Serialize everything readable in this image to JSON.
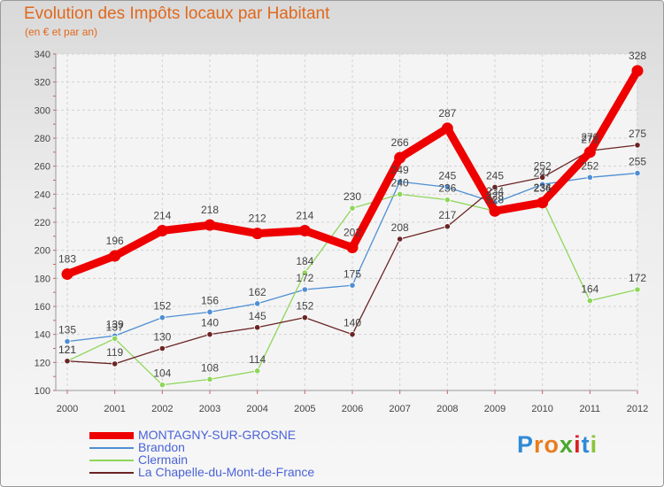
{
  "chart_data": {
    "type": "line",
    "title": "Evolution des Impôts locaux par Habitant",
    "subtitle": "(en € et par an)",
    "xlabel": "",
    "ylabel": "",
    "ylim": [
      100,
      340
    ],
    "yticks": [
      "100",
      "120",
      "140",
      "160",
      "180",
      "200",
      "220",
      "240",
      "260",
      "280",
      "300",
      "320",
      "340"
    ],
    "categories": [
      "2000",
      "2001",
      "2002",
      "2003",
      "2004",
      "2005",
      "2006",
      "2007",
      "2008",
      "2009",
      "2010",
      "2011",
      "2012"
    ],
    "series": [
      {
        "name": "Brandon",
        "color": "#4f8fd3",
        "values": [
          135,
          139,
          152,
          156,
          162,
          172,
          175,
          249,
          245,
          234,
          247,
          252,
          255
        ],
        "labels": [
          "135",
          "139",
          "152",
          "156",
          "162",
          "172",
          "175",
          "249",
          "245",
          "234",
          "247",
          "252",
          "255"
        ]
      },
      {
        "name": "Clermain",
        "color": "#8ed65a",
        "values": [
          121,
          137,
          104,
          108,
          114,
          184,
          230,
          240,
          236,
          228,
          236,
          164,
          172
        ],
        "labels": [
          "121",
          "137",
          "104",
          "108",
          "114",
          "184",
          "230",
          "240",
          "236",
          "228",
          "236",
          "164",
          "172"
        ]
      },
      {
        "name": "La Chapelle-du-Mont-de-France",
        "color": "#6b2424",
        "values": [
          121,
          119,
          130,
          140,
          145,
          152,
          140,
          208,
          217,
          245,
          252,
          271,
          275
        ],
        "labels": [
          "121",
          "119",
          "130",
          "140",
          "145",
          "152",
          "140",
          "208",
          "217",
          "245",
          "252",
          "271",
          "275"
        ]
      },
      {
        "name": "MONTAGNY-SUR-GROSNE",
        "color": "#ee0000",
        "emphasis": true,
        "values": [
          183,
          196,
          214,
          218,
          212,
          214,
          202,
          266,
          287,
          228,
          234,
          270,
          328
        ],
        "labels": [
          "183",
          "196",
          "214",
          "218",
          "212",
          "214",
          "202",
          "266",
          "287",
          "228",
          "234",
          "270",
          "328"
        ]
      }
    ],
    "legend": [
      {
        "name": "MONTAGNY-SUR-GROSNE",
        "color": "#ee0000",
        "weight": "thick"
      },
      {
        "name": "Brandon",
        "color": "#4f8fd3",
        "weight": "thin"
      },
      {
        "name": "Clermain",
        "color": "#8ed65a",
        "weight": "thin"
      },
      {
        "name": "La Chapelle-du-Mont-de-France",
        "color": "#6b2424",
        "weight": "thin"
      }
    ]
  },
  "logo": {
    "text": "Proxiti",
    "letters": [
      "P",
      "r",
      "o",
      "x",
      "i",
      "t",
      "i"
    ],
    "colors": [
      "#2e8ad6",
      "#e87d1e",
      "#e87d1e",
      "#4aa82e",
      "#d92222",
      "#2e8ad6",
      "#8ac43a"
    ]
  }
}
